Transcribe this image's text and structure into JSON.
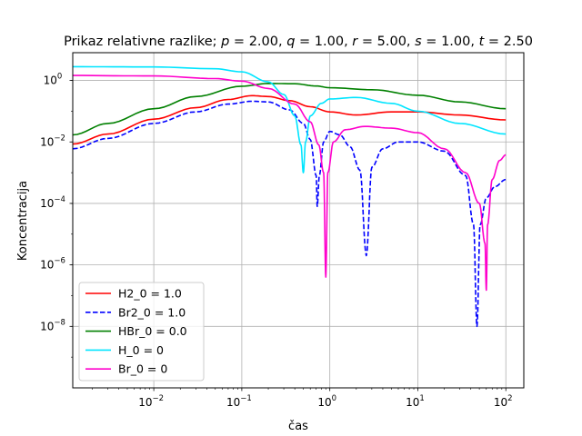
{
  "chart_data": {
    "type": "line",
    "title": "Prikaz relativne razlike; p = 2.00, q = 1.00, r = 5.00, s = 1.00, t = 2.50",
    "title_parts": [
      {
        "t": "Prikaz relativne razlike; ",
        "i": false
      },
      {
        "t": "p",
        "i": true
      },
      {
        "t": " = 2.00, ",
        "i": false
      },
      {
        "t": "q",
        "i": true
      },
      {
        "t": " = 1.00, ",
        "i": false
      },
      {
        "t": "r",
        "i": true
      },
      {
        "t": " = 5.00, ",
        "i": false
      },
      {
        "t": "s",
        "i": true
      },
      {
        "t": " = 1.00, ",
        "i": false
      },
      {
        "t": "t",
        "i": true
      },
      {
        "t": " = 2.50",
        "i": false
      }
    ],
    "xlabel": "čas",
    "ylabel": "Koncentracija",
    "xscale": "log",
    "yscale": "log",
    "xlim": [
      0.0012,
      160
    ],
    "ylim": [
      1e-10,
      8
    ],
    "xticks": [
      {
        "value": 0.01,
        "base": "10",
        "exp": "−2"
      },
      {
        "value": 0.1,
        "base": "10",
        "exp": "−1"
      },
      {
        "value": 1,
        "base": "10",
        "exp": "0"
      },
      {
        "value": 10,
        "base": "10",
        "exp": "1"
      },
      {
        "value": 100,
        "base": "10",
        "exp": "2"
      }
    ],
    "yticks": [
      {
        "value": 1e-08,
        "base": "10",
        "exp": "−8"
      },
      {
        "value": 1e-06,
        "base": "10",
        "exp": "−6"
      },
      {
        "value": 0.0001,
        "base": "10",
        "exp": "−4"
      },
      {
        "value": 0.01,
        "base": "10",
        "exp": "−2"
      },
      {
        "value": 1,
        "base": "10",
        "exp": "0"
      }
    ],
    "grid": true,
    "legend_position": "lower-left",
    "series": [
      {
        "name": "H2_0 = 1.0",
        "color": "#ff0000",
        "dash": "solid",
        "points": [
          [
            0.0012,
            0.0085
          ],
          [
            0.003,
            0.018
          ],
          [
            0.01,
            0.055
          ],
          [
            0.03,
            0.13
          ],
          [
            0.07,
            0.24
          ],
          [
            0.13,
            0.32
          ],
          [
            0.2,
            0.3
          ],
          [
            0.35,
            0.22
          ],
          [
            0.6,
            0.14
          ],
          [
            1,
            0.095
          ],
          [
            2,
            0.075
          ],
          [
            5,
            0.095
          ],
          [
            10,
            0.095
          ],
          [
            30,
            0.075
          ],
          [
            100,
            0.052
          ]
        ]
      },
      {
        "name": " Br2_0 = 1.0",
        "color": "#0000ff",
        "dash": "dashed",
        "points": [
          [
            0.0012,
            0.006
          ],
          [
            0.003,
            0.013
          ],
          [
            0.01,
            0.04
          ],
          [
            0.03,
            0.095
          ],
          [
            0.07,
            0.17
          ],
          [
            0.13,
            0.21
          ],
          [
            0.2,
            0.2
          ],
          [
            0.35,
            0.11
          ],
          [
            0.5,
            0.04
          ],
          [
            0.6,
            0.012
          ],
          [
            0.7,
            0.0008
          ],
          [
            0.72,
            8e-05
          ],
          [
            0.76,
            0.0008
          ],
          [
            0.85,
            0.01
          ],
          [
            1,
            0.022
          ],
          [
            1.3,
            0.017
          ],
          [
            1.7,
            0.007
          ],
          [
            2.2,
            0.0012
          ],
          [
            2.6,
            2e-06
          ],
          [
            3,
            0.0015
          ],
          [
            4,
            0.006
          ],
          [
            6,
            0.01
          ],
          [
            10,
            0.01
          ],
          [
            20,
            0.005
          ],
          [
            35,
            0.0008
          ],
          [
            43,
            2e-05
          ],
          [
            47,
            1e-08
          ],
          [
            51,
            2e-05
          ],
          [
            60,
            0.00015
          ],
          [
            75,
            0.00035
          ],
          [
            100,
            0.0006
          ]
        ]
      },
      {
        "name": "HBr_0 = 0.0",
        "color": "#008000",
        "dash": "solid",
        "points": [
          [
            0.0012,
            0.017
          ],
          [
            0.003,
            0.04
          ],
          [
            0.01,
            0.12
          ],
          [
            0.03,
            0.3
          ],
          [
            0.1,
            0.65
          ],
          [
            0.2,
            0.8
          ],
          [
            0.4,
            0.78
          ],
          [
            0.7,
            0.66
          ],
          [
            1,
            0.58
          ],
          [
            3,
            0.5
          ],
          [
            10,
            0.33
          ],
          [
            30,
            0.2
          ],
          [
            100,
            0.12
          ]
        ]
      },
      {
        "name": "H_0 = 0",
        "color": "#00e5ff",
        "dash": "solid",
        "points": [
          [
            0.0012,
            2.8
          ],
          [
            0.01,
            2.75
          ],
          [
            0.05,
            2.4
          ],
          [
            0.1,
            1.9
          ],
          [
            0.2,
            0.9
          ],
          [
            0.3,
            0.35
          ],
          [
            0.4,
            0.07
          ],
          [
            0.47,
            0.008
          ],
          [
            0.5,
            0.001
          ],
          [
            0.53,
            0.01
          ],
          [
            0.6,
            0.07
          ],
          [
            0.8,
            0.18
          ],
          [
            1,
            0.25
          ],
          [
            2,
            0.28
          ],
          [
            5,
            0.18
          ],
          [
            10,
            0.1
          ],
          [
            30,
            0.04
          ],
          [
            100,
            0.018
          ]
        ]
      },
      {
        "name": "Br_0 = 0",
        "color": "#ff00cc",
        "dash": "solid",
        "points": [
          [
            0.0012,
            1.45
          ],
          [
            0.01,
            1.4
          ],
          [
            0.05,
            1.15
          ],
          [
            0.1,
            0.95
          ],
          [
            0.2,
            0.55
          ],
          [
            0.4,
            0.17
          ],
          [
            0.6,
            0.045
          ],
          [
            0.75,
            0.008
          ],
          [
            0.85,
            0.001
          ],
          [
            0.9,
            4e-07
          ],
          [
            0.95,
            0.001
          ],
          [
            1.1,
            0.01
          ],
          [
            1.5,
            0.025
          ],
          [
            2.5,
            0.032
          ],
          [
            5,
            0.028
          ],
          [
            10,
            0.02
          ],
          [
            20,
            0.006
          ],
          [
            35,
            0.001
          ],
          [
            50,
            0.0001
          ],
          [
            58,
            5e-06
          ],
          [
            60,
            1.5e-07
          ],
          [
            62,
            2e-05
          ],
          [
            70,
            0.0006
          ],
          [
            85,
            0.0025
          ],
          [
            100,
            0.0038
          ]
        ]
      }
    ]
  }
}
